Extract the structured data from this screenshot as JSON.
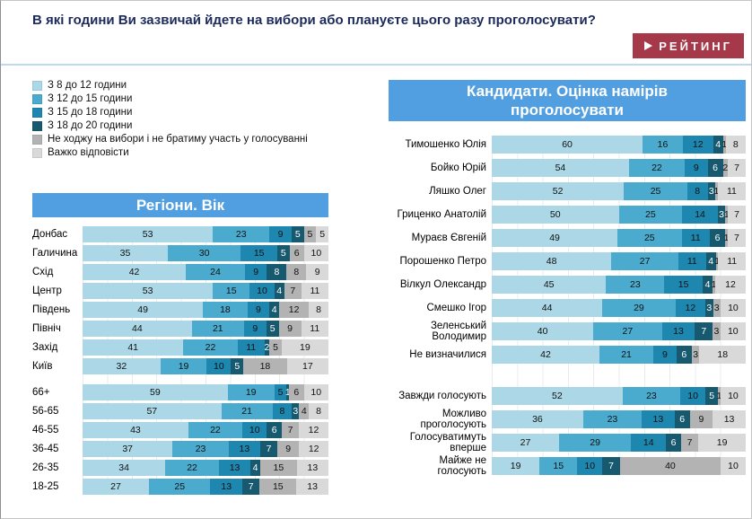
{
  "title": "В які години Ви зазвичай йдете на вибори або плануєте цього разу проголосувати?",
  "logo": {
    "text": "РЕЙТИНГ",
    "background": "#a5394a"
  },
  "accent_header_color": "#519fe0",
  "legend": [
    {
      "label": "З 8 до 12 години",
      "color": "#abd7e6"
    },
    {
      "label": "З 12 до 15 години",
      "color": "#4babce"
    },
    {
      "label": "З 15 до 18 години",
      "color": "#1e87b0"
    },
    {
      "label": "З 18 до 20 години",
      "color": "#17596e"
    },
    {
      "label": "Не ходжу на вибори і не братиму участь у голосуванні",
      "color": "#b3b3b3"
    },
    {
      "label": "Важко відповісти",
      "color": "#d9d9d9"
    }
  ],
  "chart_data": [
    {
      "type": "bar",
      "subtype": "horizontal-stacked",
      "unit": "percent",
      "xlim": [
        0,
        100
      ],
      "title": "Регіони. Вік",
      "series_labels": [
        "З 8 до 12 години",
        "З 12 до 15 години",
        "З 15 до 18 години",
        "З 18 до 20 години",
        "Не ходжу на вибори і не братиму участь у голосуванні",
        "Важко відповісти"
      ],
      "groups": [
        {
          "categories": [
            "Донбас",
            "Галичина",
            "Схід",
            "Центр",
            "Південь",
            "Північ",
            "Захід",
            "Київ"
          ],
          "values": [
            [
              53,
              23,
              9,
              5,
              5,
              5
            ],
            [
              35,
              30,
              15,
              5,
              6,
              10
            ],
            [
              42,
              24,
              9,
              8,
              8,
              9
            ],
            [
              53,
              15,
              10,
              4,
              7,
              11
            ],
            [
              49,
              18,
              9,
              4,
              12,
              8
            ],
            [
              44,
              21,
              9,
              5,
              9,
              11
            ],
            [
              41,
              22,
              11,
              2,
              5,
              19
            ],
            [
              32,
              19,
              10,
              5,
              18,
              17
            ]
          ]
        },
        {
          "categories": [
            "66+",
            "56-65",
            "46-55",
            "36-45",
            "26-35",
            "18-25"
          ],
          "values": [
            [
              59,
              19,
              5,
              1,
              6,
              10
            ],
            [
              57,
              21,
              8,
              3,
              4,
              8
            ],
            [
              43,
              22,
              10,
              6,
              7,
              12
            ],
            [
              37,
              23,
              13,
              7,
              9,
              12
            ],
            [
              34,
              22,
              13,
              4,
              15,
              13
            ],
            [
              27,
              25,
              13,
              7,
              15,
              13
            ]
          ]
        }
      ]
    },
    {
      "type": "bar",
      "subtype": "horizontal-stacked",
      "unit": "percent",
      "xlim": [
        0,
        100
      ],
      "title": "Кандидати. Оцінка намірів проголосувати",
      "series_labels": [
        "З 8 до 12 години",
        "З 12 до 15 години",
        "З 15 до 18 години",
        "З 18 до 20 години",
        "Не ходжу на вибори і не братиму участь у голосуванні",
        "Важко відповісти"
      ],
      "groups": [
        {
          "categories": [
            "Тимошенко Юлія",
            "Бойко Юрій",
            "Ляшко Олег",
            "Гриценко Анатолій",
            "Мураєв Євгеній",
            "Порошенко Петро",
            "Вілкул Олександр",
            "Смешко Ігор",
            "Зеленський Володимир",
            "Не визначилися"
          ],
          "values": [
            [
              60,
              16,
              12,
              4,
              1,
              8
            ],
            [
              54,
              22,
              9,
              6,
              2,
              7
            ],
            [
              52,
              25,
              8,
              3,
              1,
              11
            ],
            [
              50,
              25,
              14,
              3,
              1,
              7
            ],
            [
              49,
              25,
              11,
              6,
              1,
              7
            ],
            [
              48,
              27,
              11,
              4,
              1,
              11
            ],
            [
              45,
              23,
              15,
              4,
              1,
              12
            ],
            [
              44,
              29,
              12,
              3,
              3,
              10
            ],
            [
              40,
              27,
              13,
              7,
              3,
              10
            ],
            [
              42,
              21,
              9,
              6,
              3,
              18
            ]
          ]
        },
        {
          "categories": [
            "Завжди голосують",
            "Можливо проголосують",
            "Голосуватимуть вперше",
            "Майже не голосують"
          ],
          "values": [
            [
              52,
              23,
              10,
              5,
              1,
              10
            ],
            [
              36,
              23,
              13,
              6,
              9,
              13
            ],
            [
              27,
              29,
              14,
              6,
              7,
              19
            ],
            [
              19,
              15,
              10,
              7,
              40,
              10
            ]
          ]
        }
      ]
    }
  ]
}
